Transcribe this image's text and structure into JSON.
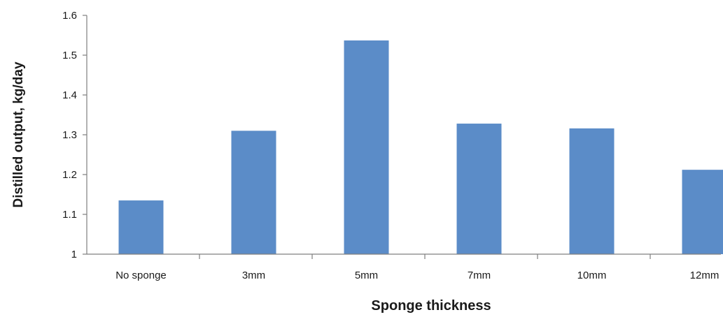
{
  "chart_data": {
    "type": "bar",
    "title": "",
    "xlabel": "Sponge thickness",
    "ylabel": "Distilled output, kg/day",
    "categories": [
      "No sponge",
      "3mm",
      "5mm",
      "7mm",
      "10mm",
      "12mm"
    ],
    "values": [
      1.135,
      1.31,
      1.537,
      1.328,
      1.316,
      1.212
    ],
    "ylim": [
      1,
      1.6
    ],
    "yticks": [
      "1",
      "1.1",
      "1.2",
      "1.3",
      "1.4",
      "1.5",
      "1.6"
    ],
    "grid": false,
    "legend": "none",
    "bar_color": "#5b8cc8",
    "axis_color": "#7f7f7f"
  }
}
